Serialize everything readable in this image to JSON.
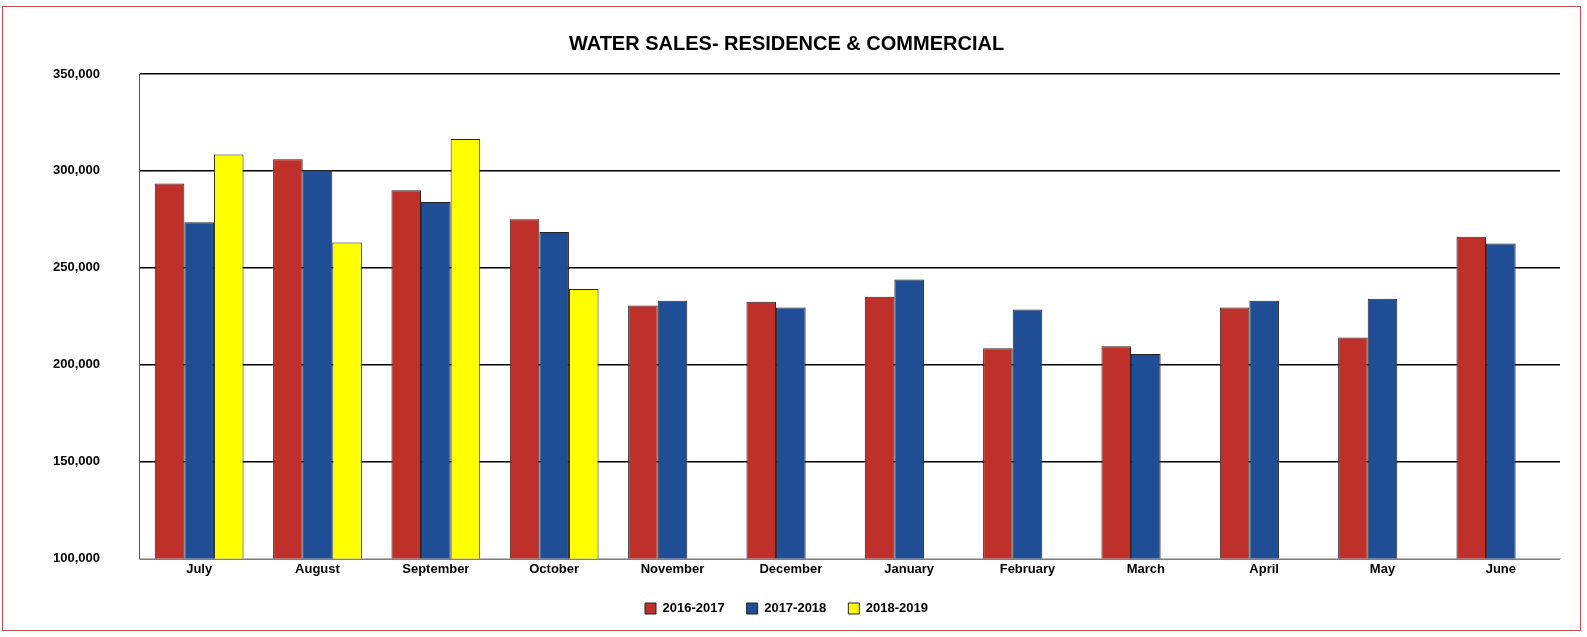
{
  "chart_data": {
    "type": "bar",
    "title": "WATER SALES- RESIDENCE & COMMERCIAL",
    "categories": [
      "July",
      "August",
      "September",
      "October",
      "November",
      "December",
      "January",
      "February",
      "March",
      "April",
      "May",
      "June"
    ],
    "series": [
      {
        "name": "2016-2017",
        "color": "#c0302a",
        "values": [
          293500,
          306000,
          290000,
          275000,
          230500,
          232500,
          235000,
          208500,
          209500,
          229500,
          214000,
          266000
        ]
      },
      {
        "name": "2017-2018",
        "color": "#1f4e96",
        "values": [
          273500,
          300500,
          284000,
          268500,
          233000,
          229500,
          244000,
          228500,
          205500,
          233000,
          234000,
          262500
        ]
      },
      {
        "name": "2018-2019",
        "color": "#ffff00",
        "values": [
          308500,
          263000,
          316500,
          239000,
          null,
          null,
          null,
          null,
          null,
          null,
          null,
          null
        ]
      }
    ],
    "ylim": [
      100000,
      350000
    ],
    "yticks": [
      {
        "value": 100000,
        "label": "100,000"
      },
      {
        "value": 150000,
        "label": "150,000"
      },
      {
        "value": 200000,
        "label": "200,000"
      },
      {
        "value": 250000,
        "label": "250,000"
      },
      {
        "value": 300000,
        "label": "300,000"
      },
      {
        "value": 350000,
        "label": "350,000"
      }
    ],
    "grid": "y",
    "legend": "bottom"
  }
}
